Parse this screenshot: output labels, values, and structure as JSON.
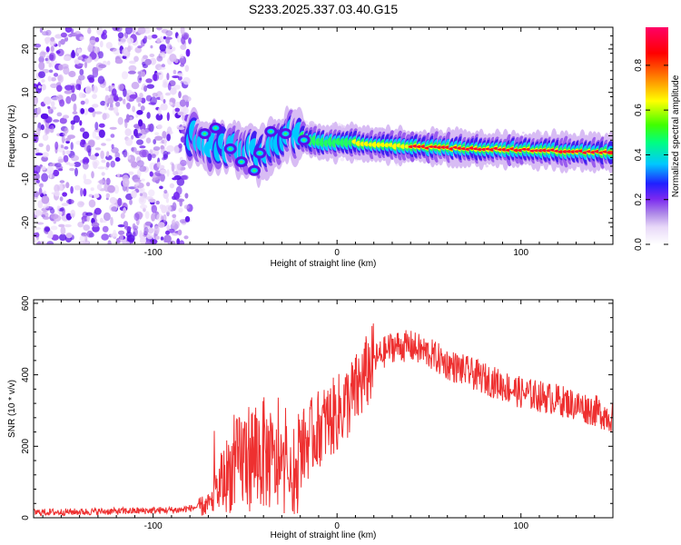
{
  "title": "S233.2025.337.03.40.G15",
  "chart_data": [
    {
      "type": "heatmap",
      "xlabel": "Height of straight line (km)",
      "ylabel": "Frequency (Hz)",
      "xlim": [
        -165,
        150
      ],
      "ylim": [
        -25,
        25
      ],
      "x_ticks": [
        -100,
        0,
        100
      ],
      "x_tick_labels": [
        "-100",
        "0",
        "100"
      ],
      "y_ticks": [
        -20,
        -10,
        0,
        10,
        20
      ],
      "y_tick_labels": [
        "-20",
        "-10",
        "0",
        "10",
        "20"
      ],
      "colorbar": {
        "label": "Normalized spectral amplitude",
        "range": [
          0,
          0.97
        ],
        "ticks": [
          0.0,
          0.2,
          0.4,
          0.6,
          0.8
        ],
        "tick_labels": [
          "0.0",
          "0.2",
          "0.4",
          "0.6",
          "0.8"
        ],
        "colors": [
          "#ffffff",
          "#e8d8f8",
          "#b08ce8",
          "#7a28f0",
          "#2020ff",
          "#00c8ff",
          "#00ff80",
          "#40ff00",
          "#ffff00",
          "#ff8000",
          "#ff0000",
          "#ff0066"
        ]
      },
      "ridge": {
        "x": [
          -80,
          -60,
          -40,
          -25,
          -10,
          10,
          30,
          60,
          100,
          150
        ],
        "y": [
          0,
          -3,
          -4,
          0.5,
          -1.5,
          -1.5,
          -2.3,
          -2.8,
          -3.2,
          -3.9
        ]
      },
      "noise_region_x": [
        -165,
        -80
      ]
    },
    {
      "type": "line",
      "xlabel": "Height of straight line (km)",
      "ylabel": "SNR (10 * v/v)",
      "xlim": [
        -165,
        150
      ],
      "ylim": [
        0,
        610
      ],
      "x_ticks": [
        -100,
        0,
        100
      ],
      "x_tick_labels": [
        "-100",
        "0",
        "100"
      ],
      "y_ticks": [
        0,
        200,
        400,
        600
      ],
      "y_tick_labels": [
        "0",
        "200",
        "400",
        "600"
      ],
      "color": "#ee3030",
      "trend": {
        "x": [
          -165,
          -120,
          -85,
          -70,
          -60,
          -50,
          -40,
          -35,
          -22,
          -20,
          -10,
          0,
          10,
          20,
          30,
          40,
          50,
          60,
          80,
          100,
          120,
          140,
          150
        ],
        "y": [
          15,
          18,
          22,
          35,
          120,
          170,
          180,
          150,
          90,
          190,
          250,
          290,
          350,
          440,
          480,
          480,
          460,
          430,
          390,
          350,
          330,
          300,
          280
        ]
      }
    }
  ]
}
